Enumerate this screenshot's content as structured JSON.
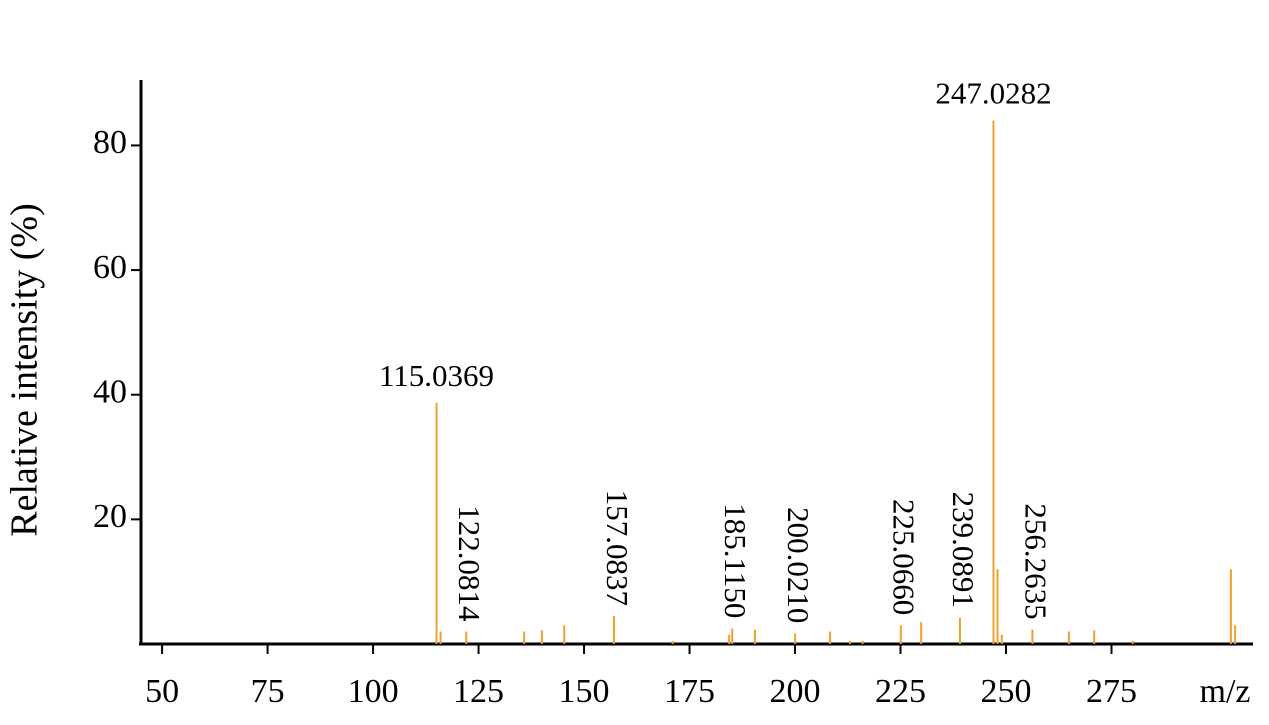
{
  "chart_data": {
    "type": "stick",
    "x_label": "m/z",
    "y_label": "Relative intensity (%)",
    "color": "#f0a030",
    "x": [
      115.0369,
      116.0,
      122.0814,
      135.8,
      140.0,
      145.3,
      157.0837,
      171.0,
      184.4,
      185.115,
      190.5,
      200.021,
      208.3,
      213.0,
      216.0,
      225.066,
      229.9,
      239.0891,
      247.0282,
      248.0,
      249.0,
      256.2635,
      264.9,
      270.9,
      280.0,
      303.3,
      304.3
    ],
    "values": [
      38.7,
      2.0,
      2.0,
      2.0,
      2.2,
      3.0,
      4.5,
      0.5,
      1.5,
      2.5,
      2.3,
      1.7,
      2.0,
      0.5,
      0.5,
      3.0,
      3.5,
      4.2,
      84.0,
      12.0,
      1.5,
      2.3,
      2.0,
      2.2,
      0.5,
      12.0,
      3.0
    ],
    "peak_labels": [
      "115.0369",
      null,
      "122.0814",
      null,
      null,
      null,
      "157.0837",
      null,
      null,
      "185.1150",
      null,
      "200.0210",
      null,
      null,
      null,
      "225.0660",
      null,
      "239.0891",
      "247.0282",
      null,
      null,
      "256.2635",
      null,
      null,
      null,
      null,
      null
    ],
    "xlim": [
      45,
      308.3
    ],
    "xticks": [
      50,
      75,
      100,
      125,
      150,
      175,
      200,
      225,
      250,
      275
    ],
    "ylim": [
      0,
      90.5
    ],
    "yticks": [
      20,
      40,
      60,
      80
    ]
  }
}
